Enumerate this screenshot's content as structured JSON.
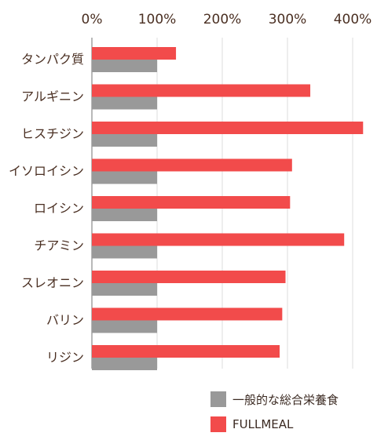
{
  "chart_data": {
    "type": "bar",
    "orientation": "horizontal",
    "categories": [
      "タンパク質",
      "アルギニン",
      "ヒスチジン",
      "イソロイシン",
      "ロイシン",
      "チアミン",
      "スレオニン",
      "バリン",
      "リジン"
    ],
    "series": [
      {
        "name": "FULLMEAL",
        "color": "#f24b4b",
        "values": [
          129,
          335,
          416,
          307,
          304,
          387,
          297,
          292,
          288
        ]
      },
      {
        "name": "一般的な総合栄養食",
        "color": "#999999",
        "values": [
          100,
          100,
          100,
          100,
          100,
          100,
          100,
          100,
          100
        ]
      }
    ],
    "x_ticks": [
      "0%",
      "100%",
      "200%",
      "300%",
      "400%"
    ],
    "xlim": [
      0,
      400
    ],
    "grid": true,
    "legend_position": "bottom-right"
  },
  "legend": [
    {
      "label": "一般的な総合栄養食",
      "color": "#999999"
    },
    {
      "label": "FULLMEAL",
      "color": "#f24b4b"
    }
  ]
}
